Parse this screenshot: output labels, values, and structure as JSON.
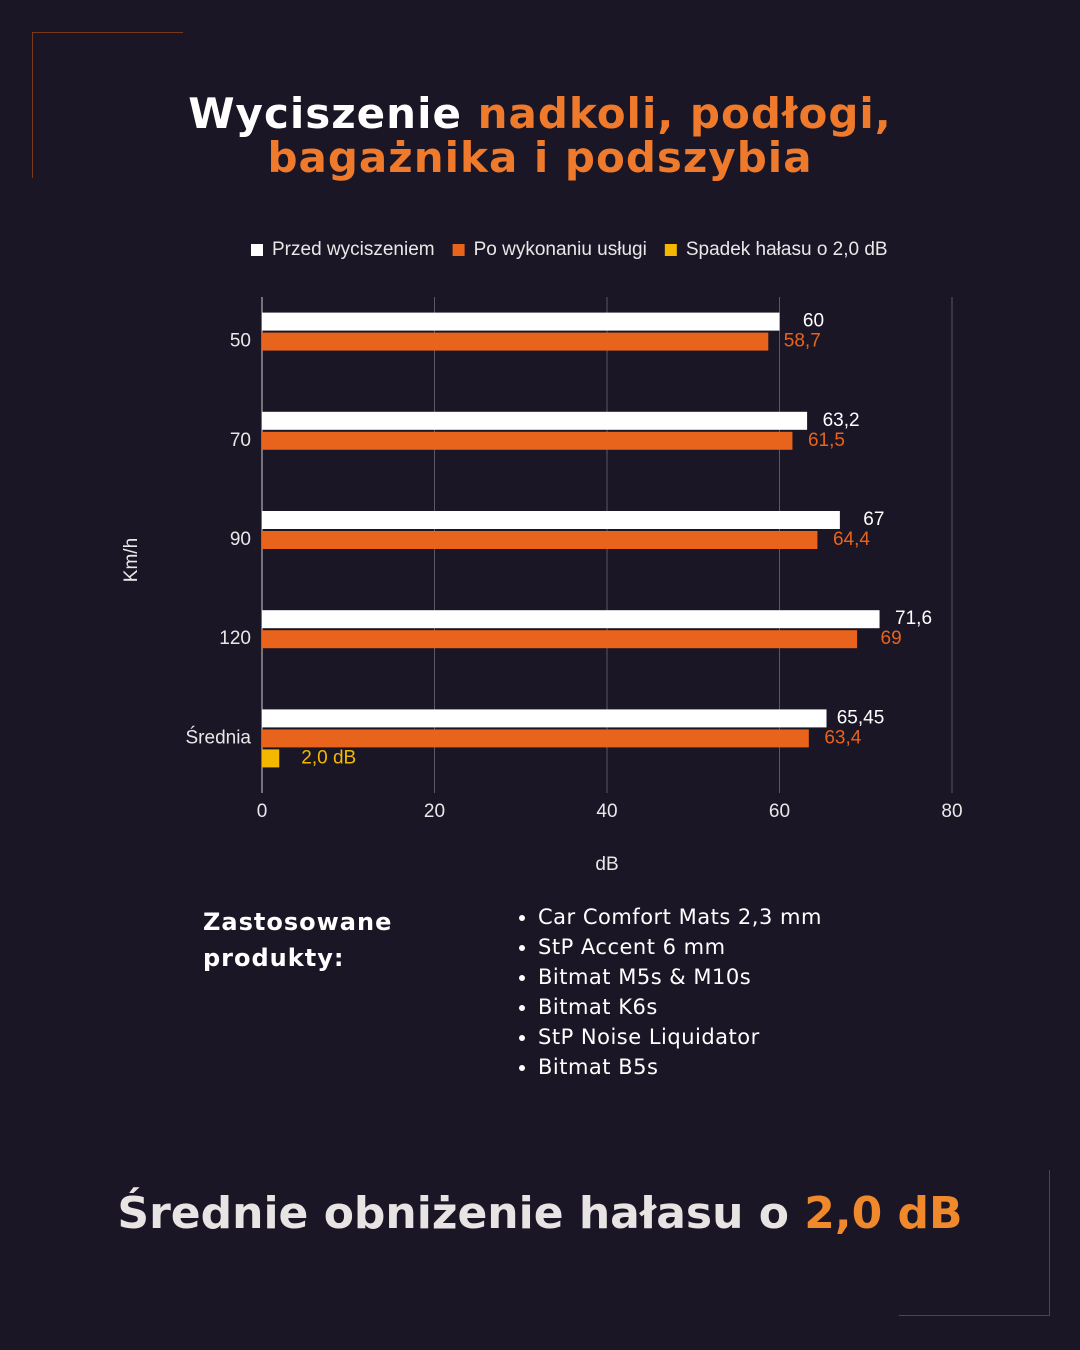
{
  "heading": {
    "lead": "Wyciszenie",
    "accent_lines": [
      "nadkoli, podłogi,",
      "bagażnika i podszybia"
    ]
  },
  "chart_data": {
    "type": "bar",
    "orientation": "horizontal",
    "categories": [
      "50",
      "70",
      "90",
      "120",
      "Średnia"
    ],
    "series": [
      {
        "name": "Przed wyciszeniem",
        "color": "#ffffff",
        "values": [
          60,
          63.2,
          67,
          71.6,
          65.45
        ],
        "value_labels": [
          "60",
          "63,2",
          "67",
          "71,6",
          "65,45"
        ]
      },
      {
        "name": "Po wykonaniu usługi",
        "color": "#e8631c",
        "values": [
          58.7,
          61.5,
          64.4,
          69,
          63.4
        ],
        "value_labels": [
          "58,7",
          "61,5",
          "64,4",
          "69",
          "63,4"
        ]
      },
      {
        "name": "Spadek hałasu o 2,0 dB",
        "color": "#f5b800",
        "values": [
          null,
          null,
          null,
          null,
          2.0
        ],
        "value_labels": [
          null,
          null,
          null,
          null,
          "2,0 dB"
        ]
      }
    ],
    "xlim": [
      0,
      80
    ],
    "xticks": [
      0,
      20,
      40,
      60,
      80
    ],
    "grid": true,
    "x_label": "dB",
    "y_label": "Km/h",
    "legend": "top"
  },
  "products": {
    "label": "Zastosowane produkty:",
    "items": [
      "Car Comfort Mats 2,3 mm",
      "StP Accent 6 mm",
      "Bitmat M5s & M10s",
      "Bitmat K6s",
      "StP Noise Liquidator",
      "Bitmat B5s"
    ]
  },
  "footer": {
    "lead": "Średnie obniżenie hałasu o",
    "accent": "2,0 dB"
  }
}
